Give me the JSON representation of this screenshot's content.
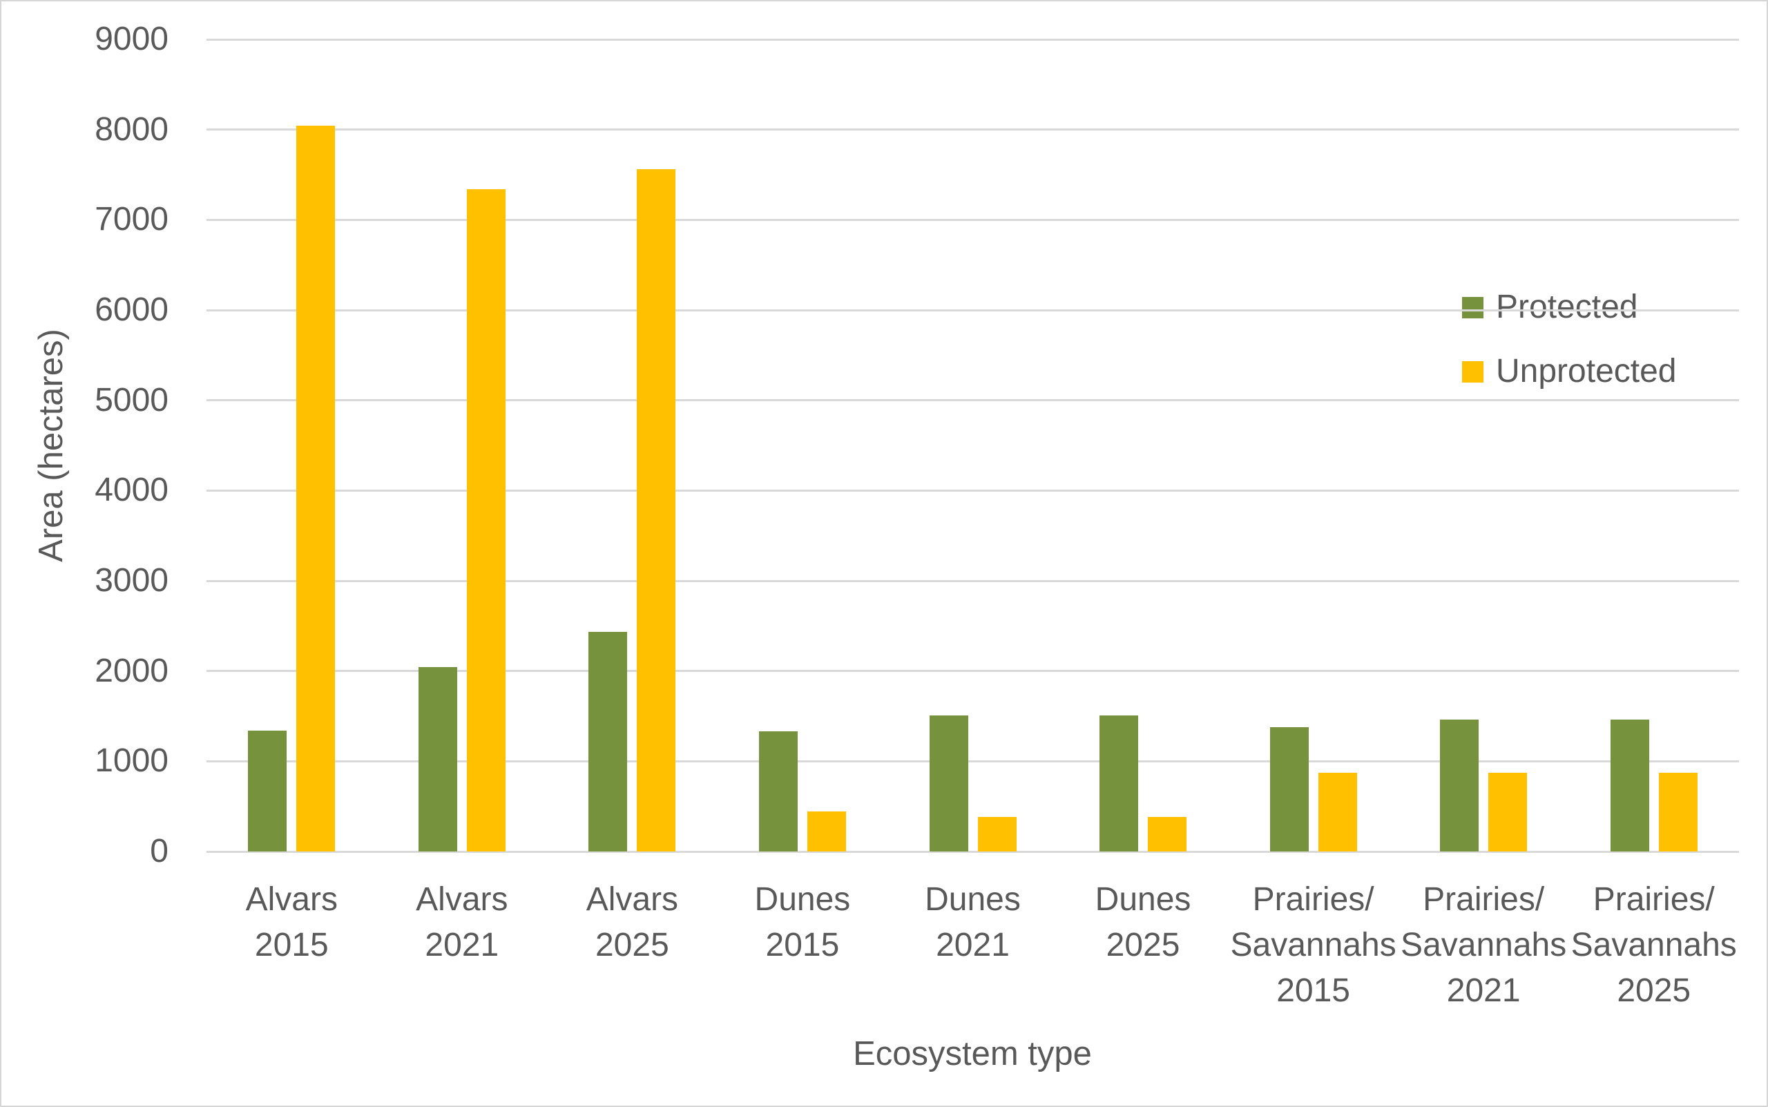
{
  "chart_data": {
    "type": "bar",
    "title": "",
    "xlabel": "Ecosystem type",
    "ylabel": "Area (hectares)",
    "ylim": [
      0,
      9000
    ],
    "yticks": [
      0,
      1000,
      2000,
      3000,
      4000,
      5000,
      6000,
      7000,
      8000,
      9000
    ],
    "grid": true,
    "legend_position": "right",
    "categories": [
      [
        "Alvars",
        "2015"
      ],
      [
        "Alvars",
        "2021"
      ],
      [
        "Alvars",
        "2025"
      ],
      [
        "Dunes",
        "2015"
      ],
      [
        "Dunes",
        "2021"
      ],
      [
        "Dunes",
        "2025"
      ],
      [
        "Prairies/",
        "Savannahs",
        "2015"
      ],
      [
        "Prairies/",
        "Savannahs",
        "2021"
      ],
      [
        "Prairies/",
        "Savannahs",
        "2025"
      ]
    ],
    "series": [
      {
        "name": "Protected",
        "color": "#76923C",
        "values": [
          1340,
          2040,
          2430,
          1330,
          1510,
          1510,
          1375,
          1460,
          1460
        ]
      },
      {
        "name": "Unprotected",
        "color": "#FFC000",
        "values": [
          8040,
          7340,
          7565,
          445,
          385,
          385,
          875,
          875,
          875
        ]
      }
    ],
    "text_color": "#595959",
    "gridline_color": "#D9D9D9"
  }
}
